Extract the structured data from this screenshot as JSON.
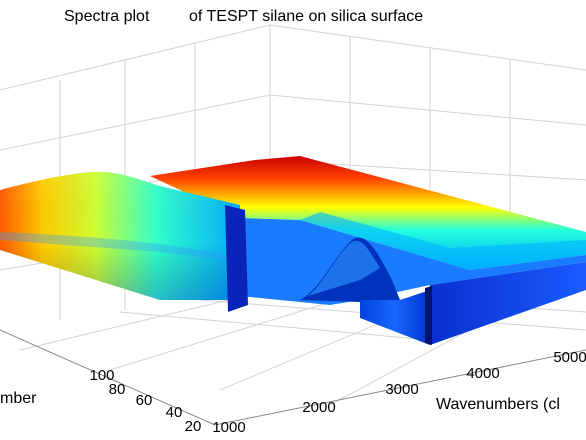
{
  "chart_data": {
    "type": "surface",
    "title_part1": "Spectra plot",
    "title_part2": "of TESPT silane  on silica surface",
    "xlabel": "Wavenumbers (cl",
    "ylabel": "mber",
    "x_ticks": [
      "1000",
      "2000",
      "3000",
      "4000",
      "5000"
    ],
    "y_ticks": [
      "100",
      "80",
      "60",
      "40",
      "20"
    ],
    "colormap": [
      "#00008f",
      "#0000ff",
      "#00ffff",
      "#ffff00",
      "#ff0000",
      "#800000"
    ],
    "grid": true
  }
}
